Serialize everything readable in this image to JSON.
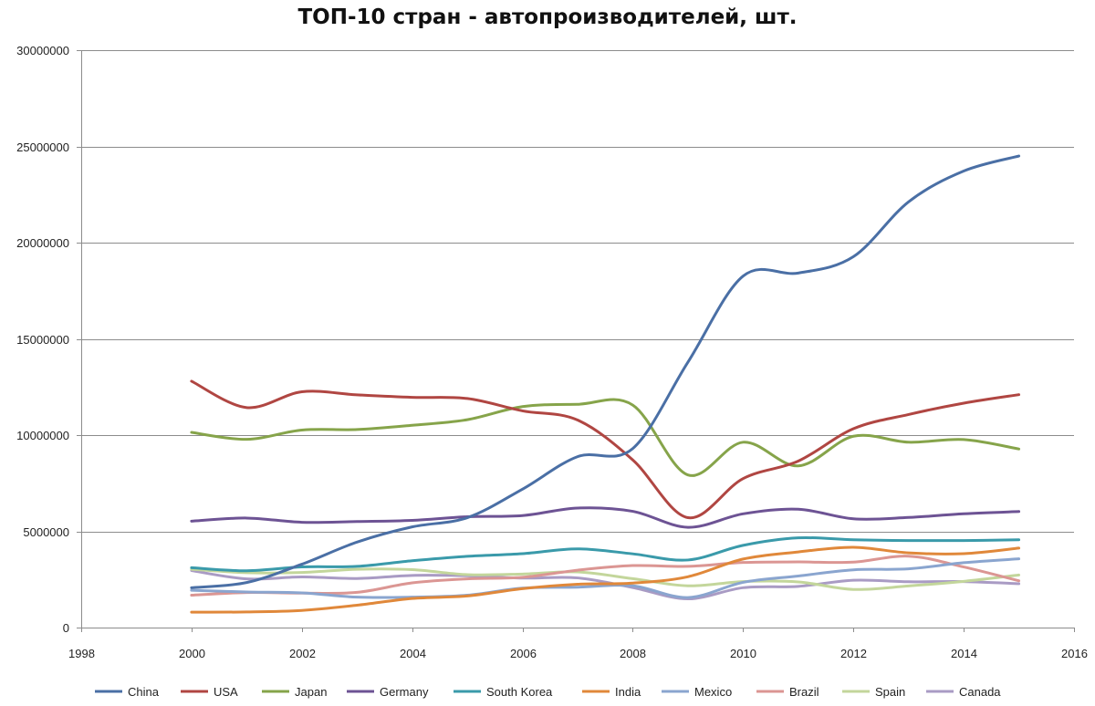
{
  "chart_data": {
    "type": "line",
    "title": "ТОП-10 стран - автопроизводителей, шт.",
    "xlabel": "",
    "ylabel": "",
    "xlim": [
      1998,
      2016
    ],
    "ylim": [
      0,
      30000000
    ],
    "x_ticks": [
      "1998",
      "2000",
      "2002",
      "2004",
      "2006",
      "2008",
      "2010",
      "2012",
      "2014",
      "2016"
    ],
    "y_ticks": [
      "0",
      "5000000",
      "10000000",
      "15000000",
      "20000000",
      "25000000",
      "30000000"
    ],
    "grid": "horizontal",
    "legend_position": "bottom",
    "x": [
      2000,
      2001,
      2002,
      2003,
      2004,
      2005,
      2006,
      2007,
      2008,
      2009,
      2010,
      2011,
      2012,
      2013,
      2014,
      2015
    ],
    "series": [
      {
        "name": "China",
        "color": "#4a6fa5",
        "values": [
          2070000,
          2340000,
          3290000,
          4440000,
          5230000,
          5710000,
          7190000,
          8880000,
          9300000,
          13790000,
          18260000,
          18420000,
          19270000,
          22120000,
          23720000,
          24500000
        ]
      },
      {
        "name": "USA",
        "color": "#b04642",
        "values": [
          12800000,
          11430000,
          12250000,
          12090000,
          11960000,
          11900000,
          11260000,
          10780000,
          8710000,
          5710000,
          7740000,
          8650000,
          10330000,
          11070000,
          11660000,
          12100000
        ]
      },
      {
        "name": "Japan",
        "color": "#86a44a",
        "values": [
          10140000,
          9780000,
          10260000,
          10290000,
          10510000,
          10800000,
          11480000,
          11600000,
          11560000,
          7930000,
          9630000,
          8400000,
          9940000,
          9630000,
          9770000,
          9280000
        ]
      },
      {
        "name": "Germany",
        "color": "#6d5394",
        "values": [
          5530000,
          5690000,
          5470000,
          5510000,
          5570000,
          5760000,
          5820000,
          6210000,
          6040000,
          5210000,
          5910000,
          6150000,
          5650000,
          5720000,
          5910000,
          6030000
        ]
      },
      {
        "name": "South Korea",
        "color": "#3a9aaa",
        "values": [
          3110000,
          2950000,
          3150000,
          3180000,
          3470000,
          3700000,
          3840000,
          4090000,
          3830000,
          3510000,
          4270000,
          4660000,
          4560000,
          4520000,
          4520000,
          4560000
        ]
      },
      {
        "name": "India",
        "color": "#e0883a",
        "values": [
          800000,
          810000,
          890000,
          1160000,
          1510000,
          1640000,
          2020000,
          2250000,
          2310000,
          2640000,
          3560000,
          3930000,
          4170000,
          3880000,
          3840000,
          4130000
        ]
      },
      {
        "name": "Mexico",
        "color": "#8aa5cf",
        "values": [
          1940000,
          1850000,
          1800000,
          1580000,
          1580000,
          1680000,
          2050000,
          2100000,
          2170000,
          1560000,
          2350000,
          2680000,
          3000000,
          3050000,
          3370000,
          3570000
        ]
      },
      {
        "name": "Brazil",
        "color": "#db9693",
        "values": [
          1680000,
          1820000,
          1790000,
          1830000,
          2320000,
          2530000,
          2610000,
          2980000,
          3220000,
          3180000,
          3380000,
          3410000,
          3400000,
          3710000,
          3150000,
          2430000
        ]
      },
      {
        "name": "Spain",
        "color": "#c3d69b",
        "values": [
          3030000,
          2850000,
          2860000,
          3030000,
          3010000,
          2750000,
          2780000,
          2890000,
          2540000,
          2170000,
          2390000,
          2370000,
          1980000,
          2160000,
          2400000,
          2730000
        ]
      },
      {
        "name": "Canada",
        "color": "#a99bc4",
        "values": [
          2960000,
          2530000,
          2630000,
          2550000,
          2710000,
          2690000,
          2570000,
          2580000,
          2080000,
          1490000,
          2070000,
          2140000,
          2460000,
          2380000,
          2390000,
          2280000
        ]
      }
    ]
  }
}
